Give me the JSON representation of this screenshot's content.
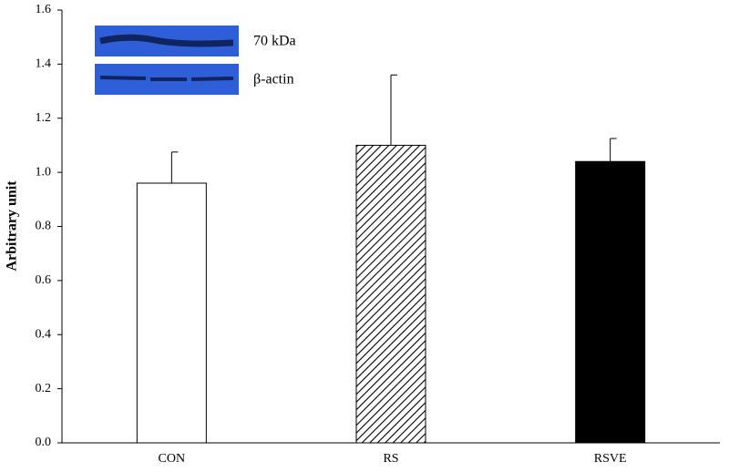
{
  "chart_data": {
    "type": "bar",
    "y_label": "Arbitrary unit",
    "categories": [
      "CON",
      "RS",
      "RSVE"
    ],
    "values": [
      0.96,
      1.1,
      1.04
    ],
    "errors": [
      0.115,
      0.26,
      0.085
    ],
    "bar_styles": [
      "white",
      "hatched",
      "black"
    ],
    "ylim": [
      0,
      1.6
    ],
    "yticks": [
      {
        "value": 0,
        "label": "0.0"
      },
      0.2,
      0.4,
      0.6,
      0.8,
      {
        "value": 1,
        "label": "1.0"
      },
      1.2,
      1.4,
      1.6
    ],
    "grid": false,
    "inset_labels": [
      "70 kDa",
      "β-actin"
    ]
  }
}
